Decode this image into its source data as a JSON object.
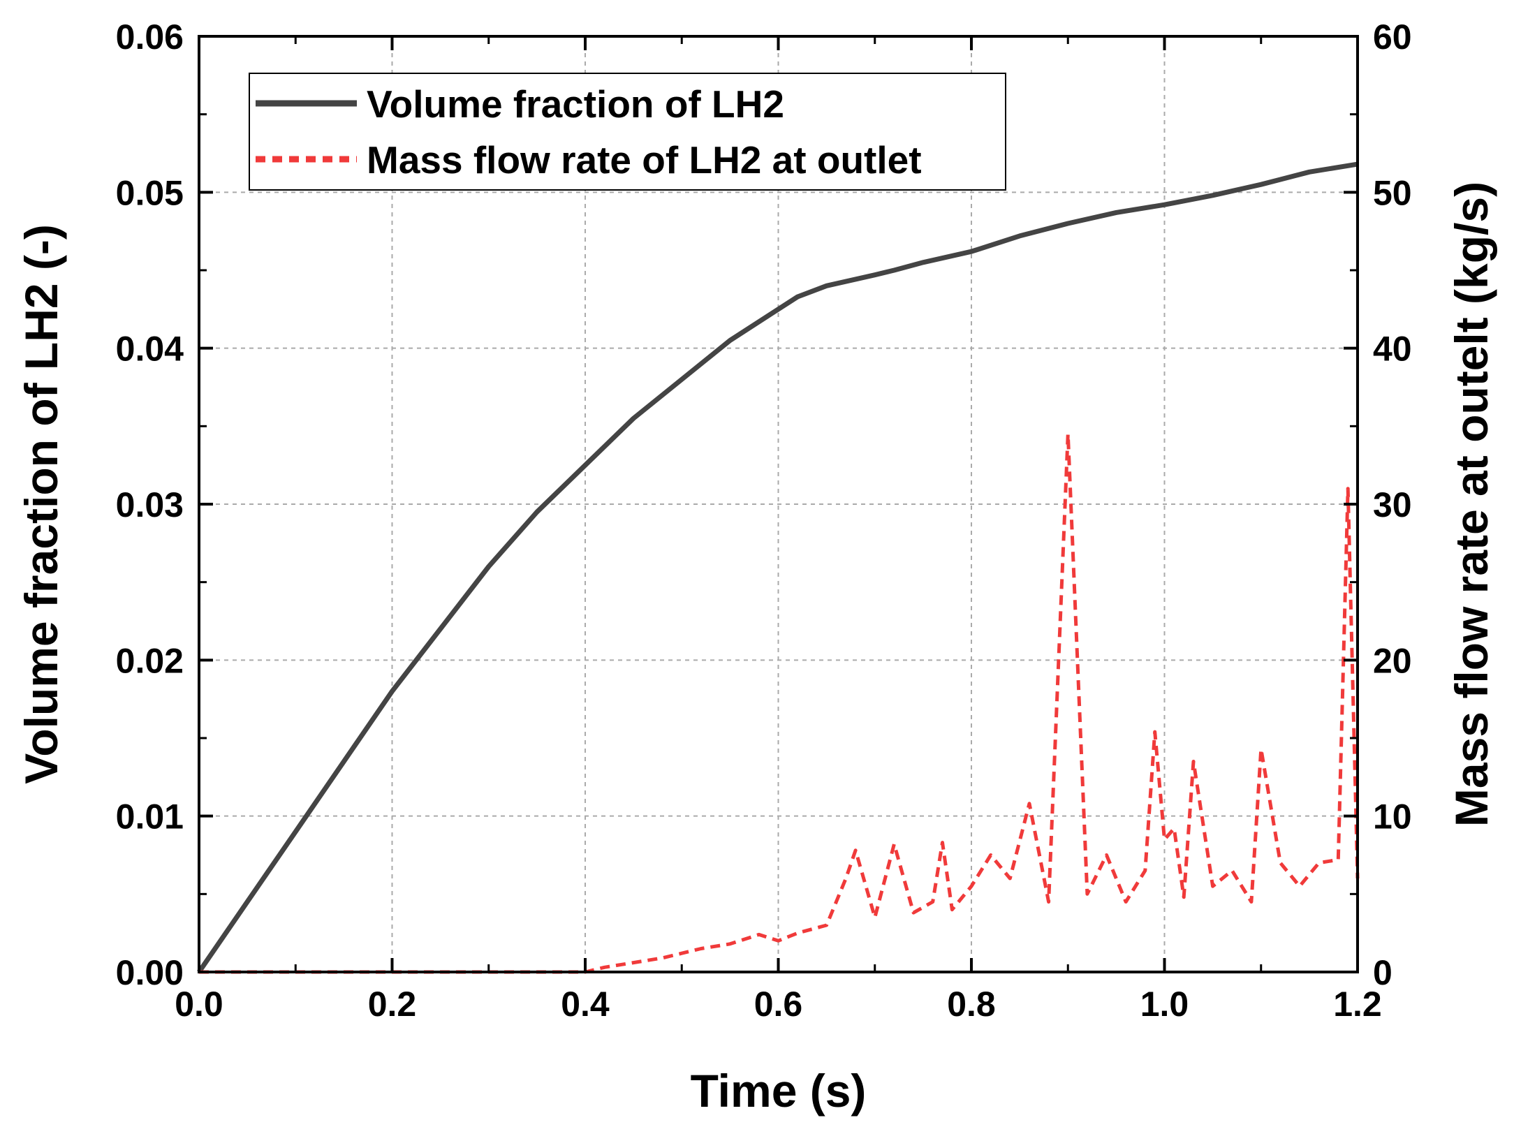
{
  "chart_data": {
    "type": "line",
    "xlabel": "Time (s)",
    "ylabel_left": "Volume fraction of LH2 (-)",
    "ylabel_right": "Mass flow rate at outelt (kg/s)",
    "xlim": [
      0,
      1.2
    ],
    "ylim_left": [
      0,
      0.06
    ],
    "ylim_right": [
      0,
      60
    ],
    "xticks": [
      "0.0",
      "0.2",
      "0.4",
      "0.6",
      "0.8",
      "1.0",
      "1.2"
    ],
    "yticks_left": [
      "0.00",
      "0.01",
      "0.02",
      "0.03",
      "0.04",
      "0.05",
      "0.06"
    ],
    "yticks_right": [
      "0",
      "10",
      "20",
      "30",
      "40",
      "50",
      "60"
    ],
    "grid": true,
    "legend_position": "top-left",
    "colors": {
      "volume_fraction": "#444444",
      "mass_flow": "#f03a3a"
    },
    "series": [
      {
        "name": "Volume fraction of LH2",
        "axis": "left",
        "style": "solid",
        "x": [
          0.0,
          0.05,
          0.1,
          0.15,
          0.2,
          0.25,
          0.3,
          0.35,
          0.4,
          0.45,
          0.5,
          0.55,
          0.6,
          0.62,
          0.65,
          0.7,
          0.72,
          0.75,
          0.8,
          0.85,
          0.9,
          0.95,
          1.0,
          1.05,
          1.1,
          1.15,
          1.2
        ],
        "y": [
          0.0,
          0.0045,
          0.009,
          0.0135,
          0.018,
          0.022,
          0.026,
          0.0295,
          0.0325,
          0.0355,
          0.038,
          0.0405,
          0.0425,
          0.0433,
          0.044,
          0.0447,
          0.045,
          0.0455,
          0.0462,
          0.0472,
          0.048,
          0.0487,
          0.0492,
          0.0498,
          0.0505,
          0.0513,
          0.0518
        ]
      },
      {
        "name": "Mass flow rate of LH2 at outlet",
        "axis": "right",
        "style": "dashed",
        "x": [
          0.0,
          0.4,
          0.42,
          0.45,
          0.48,
          0.5,
          0.52,
          0.55,
          0.58,
          0.6,
          0.62,
          0.65,
          0.67,
          0.68,
          0.7,
          0.72,
          0.74,
          0.76,
          0.77,
          0.78,
          0.8,
          0.82,
          0.84,
          0.86,
          0.88,
          0.9,
          0.92,
          0.94,
          0.96,
          0.98,
          0.99,
          1.0,
          1.01,
          1.02,
          1.03,
          1.05,
          1.07,
          1.09,
          1.1,
          1.12,
          1.14,
          1.16,
          1.18,
          1.19,
          1.2
        ],
        "y": [
          0.0,
          0.0,
          0.3,
          0.6,
          0.9,
          1.2,
          1.5,
          1.8,
          2.4,
          2.0,
          2.5,
          3.0,
          6.0,
          7.8,
          3.5,
          8.2,
          3.8,
          4.5,
          8.3,
          4.0,
          5.5,
          7.5,
          6.0,
          10.8,
          4.5,
          34.5,
          5.0,
          7.5,
          4.5,
          6.5,
          15.4,
          8.5,
          9.2,
          4.8,
          13.5,
          5.5,
          6.5,
          4.5,
          14.3,
          7.0,
          5.5,
          7.0,
          7.2,
          31.0,
          6.0
        ]
      }
    ]
  }
}
